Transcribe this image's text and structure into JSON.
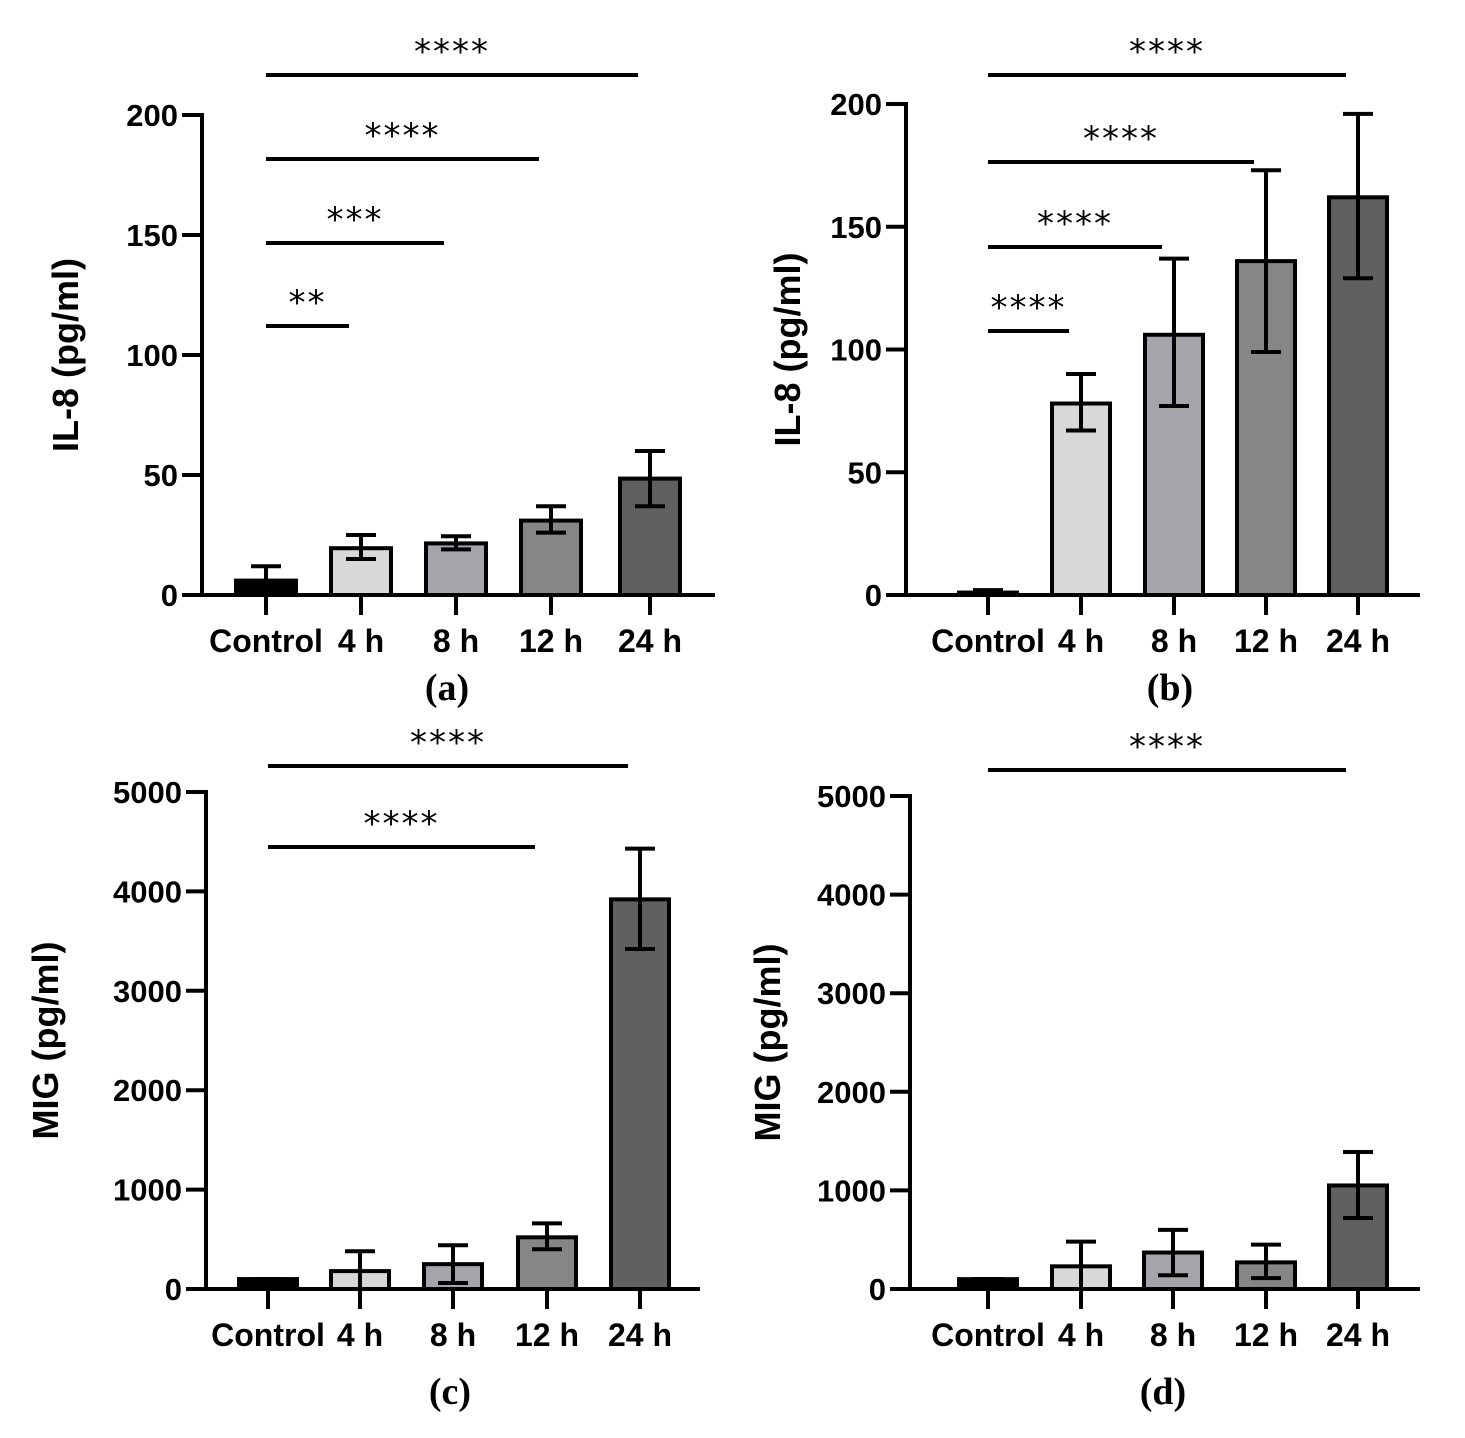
{
  "colors": {
    "Control": "#000000",
    "4 h": "#d8d8d8",
    "8 h": "#a4a4aa",
    "12 h": "#868686",
    "24 h": "#606060",
    "stroke": "#000000"
  },
  "chart_data": [
    {
      "type": "bar",
      "panel_label": "(a)",
      "ylabel": "IL-8 (pg/ml)",
      "categories": [
        "Control",
        "4 h",
        "8 h",
        "12 h",
        "24 h"
      ],
      "values": [
        6,
        19.5,
        21.5,
        31,
        48.5
      ],
      "errors_upper": [
        12,
        25,
        24.5,
        37,
        60
      ],
      "errors_lower": [
        0,
        15,
        19,
        26,
        37
      ],
      "ylim": [
        0,
        200
      ],
      "yticks": [
        0,
        50,
        100,
        150,
        200
      ],
      "ytick_labels": [
        "0",
        "50",
        "100",
        "150",
        "200"
      ],
      "significance": [
        {
          "from": 0,
          "to": 4,
          "label": "****"
        },
        {
          "from": 0,
          "to": 3,
          "label": "****"
        },
        {
          "from": 0,
          "to": 2,
          "label": "***"
        },
        {
          "from": 0,
          "to": 1,
          "label": "**"
        }
      ]
    },
    {
      "type": "bar",
      "panel_label": "(b)",
      "ylabel": "IL-8 (pg/ml)",
      "categories": [
        "Control",
        "4 h",
        "8 h",
        "12 h",
        "24 h"
      ],
      "values": [
        1,
        78,
        106,
        136,
        162
      ],
      "errors_upper": [
        2,
        90,
        137,
        173,
        196
      ],
      "errors_lower": [
        0,
        67,
        77,
        99,
        129
      ],
      "ylim": [
        0,
        200
      ],
      "yticks": [
        0,
        50,
        100,
        150,
        200
      ],
      "ytick_labels": [
        "0",
        "50",
        "100",
        "150",
        "200"
      ],
      "significance": [
        {
          "from": 0,
          "to": 4,
          "label": "****"
        },
        {
          "from": 0,
          "to": 3,
          "label": "****"
        },
        {
          "from": 0,
          "to": 2,
          "label": "****"
        },
        {
          "from": 0,
          "to": 1,
          "label": "****"
        }
      ]
    },
    {
      "type": "bar",
      "panel_label": "(c)",
      "ylabel": "MIG (pg/ml)",
      "categories": [
        "Control",
        "4 h",
        "8 h",
        "12 h",
        "24 h"
      ],
      "values": [
        100,
        180,
        250,
        520,
        3920
      ],
      "errors_upper": [
        100,
        380,
        440,
        660,
        4430
      ],
      "errors_lower": [
        100,
        0,
        60,
        400,
        3420
      ],
      "ylim": [
        0,
        5000
      ],
      "yticks": [
        0,
        1000,
        2000,
        3000,
        4000,
        5000
      ],
      "ytick_labels": [
        "0",
        "1000",
        "2000",
        "3000",
        "4000",
        "5000"
      ],
      "significance": [
        {
          "from": 0,
          "to": 4,
          "label": "****"
        },
        {
          "from": 0,
          "to": 3,
          "label": "****"
        }
      ]
    },
    {
      "type": "bar",
      "panel_label": "(d)",
      "ylabel": "MIG (pg/ml)",
      "categories": [
        "Control",
        "4 h",
        "8 h",
        "12 h",
        "24 h"
      ],
      "values": [
        100,
        230,
        370,
        270,
        1050
      ],
      "errors_upper": [
        100,
        480,
        600,
        450,
        1390
      ],
      "errors_lower": [
        100,
        0,
        140,
        110,
        720
      ],
      "ylim": [
        0,
        5000
      ],
      "yticks": [
        0,
        1000,
        2000,
        3000,
        4000,
        5000
      ],
      "ytick_labels": [
        "0",
        "1000",
        "2000",
        "3000",
        "4000",
        "5000"
      ],
      "significance": [
        {
          "from": 0,
          "to": 4,
          "label": "****"
        }
      ]
    }
  ]
}
